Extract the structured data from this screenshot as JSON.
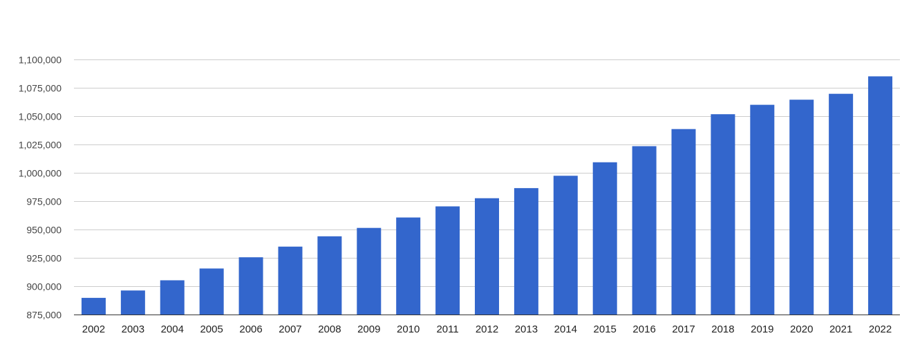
{
  "chart_data": {
    "type": "bar",
    "title": "",
    "xlabel": "",
    "ylabel": "",
    "categories": [
      "2002",
      "2003",
      "2004",
      "2005",
      "2006",
      "2007",
      "2008",
      "2009",
      "2010",
      "2011",
      "2012",
      "2013",
      "2014",
      "2015",
      "2016",
      "2017",
      "2018",
      "2019",
      "2020",
      "2021",
      "2022"
    ],
    "values": [
      889700,
      896200,
      905200,
      915600,
      925500,
      934900,
      944000,
      951400,
      960600,
      970400,
      977600,
      986500,
      997400,
      1009300,
      1023500,
      1038600,
      1051700,
      1060000,
      1064500,
      1069700,
      1085100
    ],
    "ylim": [
      875000,
      1100000
    ],
    "yticks": [
      875000,
      900000,
      925000,
      950000,
      975000,
      1000000,
      1025000,
      1050000,
      1075000,
      1100000
    ],
    "ytick_labels": [
      "875,000",
      "900,000",
      "925,000",
      "950,000",
      "975,000",
      "1,000,000",
      "1,025,000",
      "1,050,000",
      "1,075,000",
      "1,100,000"
    ],
    "grid": true,
    "legend": "none",
    "colors": {
      "bar": "#3366cc",
      "grid": "#cccccc",
      "baseline": "#333333",
      "tick_text": "#444444",
      "category_text": "#222222"
    }
  }
}
